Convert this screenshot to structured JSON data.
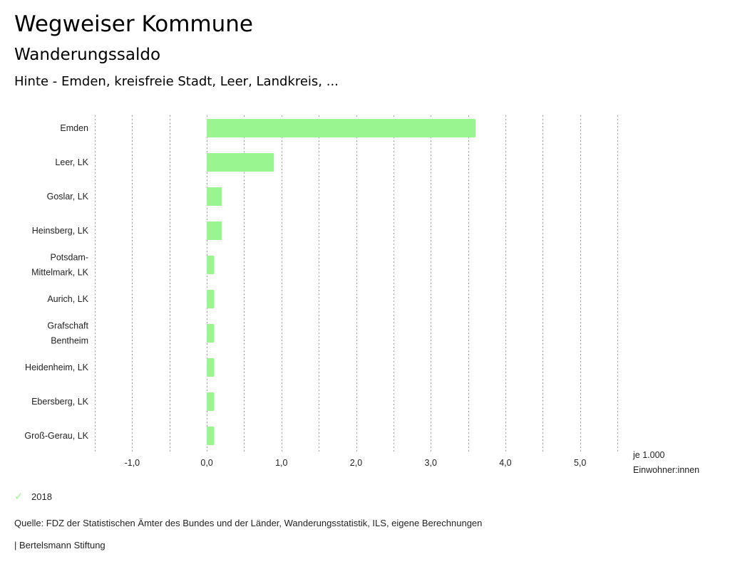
{
  "header": {
    "title": "Wegweiser Kommune",
    "subtitle": "Wanderungssaldo",
    "region": "Hinte - Emden, kreisfreie Stadt, Leer, Landkreis, ..."
  },
  "chart_data": {
    "type": "bar",
    "orientation": "horizontal",
    "categories": [
      [
        "Emden"
      ],
      [
        "Leer, LK"
      ],
      [
        "Goslar, LK"
      ],
      [
        "Heinsberg, LK"
      ],
      [
        "Potsdam-",
        "Mittelmark, LK"
      ],
      [
        "Aurich, LK"
      ],
      [
        "Grafschaft",
        "Bentheim"
      ],
      [
        "Heidenheim, LK"
      ],
      [
        "Ebersberg, LK"
      ],
      [
        "Groß-Gerau, LK"
      ]
    ],
    "series": [
      {
        "name": "2018",
        "color": "#99f590",
        "values": [
          3.6,
          0.9,
          0.2,
          0.2,
          0.1,
          0.1,
          0.1,
          0.1,
          0.1,
          0.1
        ]
      }
    ],
    "xlim": [
      -1.5,
      5.5
    ],
    "xticks": [
      -1,
      0,
      1,
      2,
      3,
      4,
      5
    ],
    "xtick_labels": [
      "-1,0",
      "0,0",
      "1,0",
      "2,0",
      "3,0",
      "4,0",
      "5,0"
    ],
    "unit_label": [
      "je 1.000",
      "Einwohner:innen"
    ],
    "grid": "vertical-dotted",
    "legend_position": "bottom-left"
  },
  "legend": {
    "icon": "check-icon",
    "label": "2018"
  },
  "footer": {
    "source": "Quelle: FDZ der Statistischen Ämter des Bundes und der Länder, Wanderungsstatistik, ILS, eigene Berechnungen",
    "publisher": "| Bertelsmann Stiftung"
  }
}
